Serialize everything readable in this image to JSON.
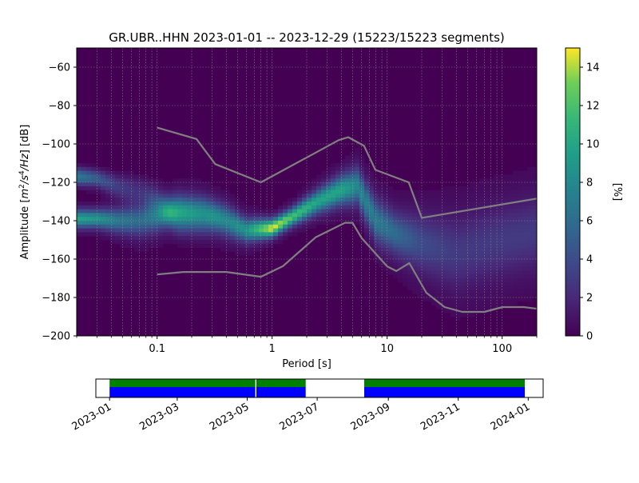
{
  "chart_data": [
    {
      "type": "heatmap",
      "title": "GR.UBR..HHN   2023-01-01 -- 2023-12-29  (15223/15223 segments)",
      "xlabel": "Period [s]",
      "ylabel_parts": {
        "prefix": "Amplitude [",
        "m": "m",
        "two": "2",
        "slash_s": "/s",
        "four": "4",
        "hz": "/Hz",
        "suffix": "] [dB]"
      },
      "xscale": "log",
      "xlim": [
        0.02,
        200
      ],
      "ylim": [
        -200,
        -50
      ],
      "xticks": [
        {
          "value": 0.1,
          "label": "0.1"
        },
        {
          "value": 1,
          "label": "1"
        },
        {
          "value": 10,
          "label": "10"
        },
        {
          "value": 100,
          "label": "100"
        }
      ],
      "yticks": [
        {
          "value": -60,
          "label": "−60"
        },
        {
          "value": -80,
          "label": "−80"
        },
        {
          "value": -100,
          "label": "−100"
        },
        {
          "value": -120,
          "label": "−120"
        },
        {
          "value": -140,
          "label": "−140"
        },
        {
          "value": -160,
          "label": "−160"
        },
        {
          "value": -180,
          "label": "−180"
        },
        {
          "value": -200,
          "label": "−200"
        }
      ],
      "grid": true,
      "colormap": "viridis",
      "colorbar": {
        "label": "[%]",
        "range": [
          0,
          15
        ],
        "ticks": [
          {
            "value": 0,
            "label": "0"
          },
          {
            "value": 2,
            "label": "2"
          },
          {
            "value": 4,
            "label": "4"
          },
          {
            "value": 6,
            "label": "6"
          },
          {
            "value": 8,
            "label": "8"
          },
          {
            "value": 10,
            "label": "10"
          },
          {
            "value": 12,
            "label": "12"
          },
          {
            "value": 14,
            "label": "14"
          }
        ]
      },
      "density_ridges": [
        {
          "period": 0.02,
          "mode": -139,
          "mode_pct": 9,
          "upper": -117,
          "upper_pct": 7,
          "spread": 3
        },
        {
          "period": 0.03,
          "mode": -139,
          "mode_pct": 8,
          "upper": -118,
          "upper_pct": 5,
          "spread": 3
        },
        {
          "period": 0.045,
          "mode": -140,
          "mode_pct": 6,
          "upper": -122,
          "upper_pct": 3,
          "spread": 4
        },
        {
          "period": 0.07,
          "mode": -140,
          "mode_pct": 5,
          "upper": -125,
          "upper_pct": 2,
          "spread": 5
        },
        {
          "period": 0.1,
          "mode": -138,
          "mode_pct": 6,
          "upper": -130,
          "upper_pct": 3,
          "spread": 5
        },
        {
          "period": 0.15,
          "mode": -134,
          "mode_pct": 7,
          "upper": -140,
          "upper_pct": 4,
          "spread": 5
        },
        {
          "period": 0.25,
          "mode": -135,
          "mode_pct": 6,
          "upper": -141,
          "upper_pct": 3,
          "spread": 5
        },
        {
          "period": 0.4,
          "mode": -140,
          "mode_pct": 7,
          "upper": -140,
          "upper_pct": 0,
          "spread": 5
        },
        {
          "period": 0.6,
          "mode": -145,
          "mode_pct": 8,
          "upper": -145,
          "upper_pct": 0,
          "spread": 4
        },
        {
          "period": 1,
          "mode": -144,
          "mode_pct": 14,
          "upper": -144,
          "upper_pct": 0,
          "spread": 3
        },
        {
          "period": 1.5,
          "mode": -138,
          "mode_pct": 11,
          "upper": -138,
          "upper_pct": 0,
          "spread": 3
        },
        {
          "period": 2.5,
          "mode": -130,
          "mode_pct": 9,
          "upper": -130,
          "upper_pct": 0,
          "spread": 4
        },
        {
          "period": 4,
          "mode": -124,
          "mode_pct": 9,
          "upper": -124,
          "upper_pct": 0,
          "spread": 5
        },
        {
          "period": 5.5,
          "mode": -122,
          "mode_pct": 7,
          "upper": -122,
          "upper_pct": 0,
          "spread": 6
        },
        {
          "period": 8,
          "mode": -140,
          "mode_pct": 6,
          "upper": -140,
          "upper_pct": 0,
          "spread": 7
        },
        {
          "period": 12,
          "mode": -147,
          "mode_pct": 5,
          "upper": -147,
          "upper_pct": 0,
          "spread": 7
        },
        {
          "period": 20,
          "mode": -152,
          "mode_pct": 3,
          "upper": -152,
          "upper_pct": 0,
          "spread": 9
        },
        {
          "period": 40,
          "mode": -157,
          "mode_pct": 2,
          "upper": -157,
          "upper_pct": 0,
          "spread": 11
        },
        {
          "period": 80,
          "mode": -152,
          "mode_pct": 2,
          "upper": -152,
          "upper_pct": 0,
          "spread": 11
        },
        {
          "period": 200,
          "mode": -146,
          "mode_pct": 2,
          "upper": -146,
          "upper_pct": 0,
          "spread": 11
        }
      ],
      "reference_models": [
        {
          "id": "high-noise-model",
          "points": [
            [
              0.1,
              -91.5
            ],
            [
              0.22,
              -97.4
            ],
            [
              0.32,
              -110.5
            ],
            [
              0.8,
              -120
            ],
            [
              3.8,
              -98
            ],
            [
              4.6,
              -96.5
            ],
            [
              6.3,
              -101
            ],
            [
              7.9,
              -113.5
            ],
            [
              15.4,
              -120
            ],
            [
              20,
              -138.5
            ],
            [
              354.8,
              -126
            ]
          ]
        },
        {
          "id": "low-noise-model",
          "points": [
            [
              0.1,
              -168
            ],
            [
              0.17,
              -166.7
            ],
            [
              0.4,
              -166.7
            ],
            [
              0.8,
              -169.2
            ],
            [
              1.24,
              -163.7
            ],
            [
              2.4,
              -148.6
            ],
            [
              4.3,
              -141.1
            ],
            [
              5,
              -141.1
            ],
            [
              6,
              -149
            ],
            [
              10,
              -163.8
            ],
            [
              12,
              -166.2
            ],
            [
              15.6,
              -162.1
            ],
            [
              21.9,
              -177.5
            ],
            [
              31.6,
              -185
            ],
            [
              45,
              -187.5
            ],
            [
              70,
              -187.5
            ],
            [
              101,
              -185
            ],
            [
              154,
              -185
            ],
            [
              328,
              -187.5
            ]
          ]
        }
      ]
    },
    {
      "type": "timeline",
      "xlim": [
        "2022-12-20",
        "2024-01-14"
      ],
      "xticks": [
        {
          "value": "2023-01-01",
          "label": "2023-01"
        },
        {
          "value": "2023-03-01",
          "label": "2023-03"
        },
        {
          "value": "2023-05-01",
          "label": "2023-05"
        },
        {
          "value": "2023-07-01",
          "label": "2023-07"
        },
        {
          "value": "2023-09-01",
          "label": "2023-09"
        },
        {
          "value": "2023-11-01",
          "label": "2023-11"
        },
        {
          "value": "2024-01-01",
          "label": "2024-01"
        }
      ],
      "coverage_segments": [
        {
          "start": "2023-01-01",
          "end": "2023-05-08"
        },
        {
          "start": "2023-05-09",
          "end": "2023-06-21"
        },
        {
          "start": "2023-08-11",
          "end": "2023-12-29"
        }
      ],
      "colors": {
        "used": "#008000",
        "available": "#0000ff",
        "marker": "#ff0000"
      }
    }
  ]
}
